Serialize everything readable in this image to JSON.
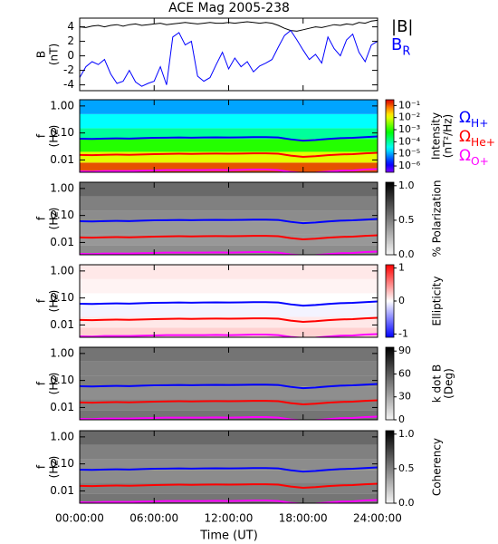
{
  "chart_data": [
    {
      "type": "line",
      "title": "ACE Mag 2005-238",
      "ylabel": [
        "B",
        "(nT)"
      ],
      "x": [
        0,
        0.5,
        1,
        1.5,
        2,
        2.5,
        3,
        3.5,
        4,
        4.5,
        5,
        5.5,
        6,
        6.5,
        7,
        7.5,
        8,
        8.5,
        9,
        9.5,
        10,
        10.5,
        11,
        11.5,
        12,
        12.5,
        13,
        13.5,
        14,
        14.5,
        15,
        15.5,
        16,
        16.5,
        17,
        17.5,
        18,
        18.5,
        19,
        19.5,
        20,
        20.5,
        21,
        21.5,
        22,
        22.5,
        23,
        23.5,
        24
      ],
      "ylim": [
        -4.8,
        5.2
      ],
      "yticks": [
        4,
        2,
        0,
        -2,
        -4
      ],
      "series": [
        {
          "name": "|B|",
          "color": "#000000",
          "values": [
            4.0,
            3.9,
            4.1,
            4.2,
            4.0,
            4.2,
            4.3,
            4.1,
            4.3,
            4.4,
            4.2,
            4.3,
            4.4,
            4.5,
            4.3,
            4.4,
            4.5,
            4.6,
            4.5,
            4.4,
            4.5,
            4.6,
            4.5,
            4.5,
            4.6,
            4.5,
            4.6,
            4.7,
            4.6,
            4.5,
            4.6,
            4.5,
            4.2,
            3.8,
            3.5,
            3.4,
            3.6,
            3.8,
            4.0,
            3.9,
            4.1,
            4.3,
            4.2,
            4.4,
            4.3,
            4.6,
            4.5,
            4.8,
            4.9
          ]
        },
        {
          "name": "B",
          "subscript": "R",
          "color": "#0000ff",
          "values": [
            -3.0,
            -1.5,
            -0.8,
            -1.2,
            -0.5,
            -2.5,
            -3.8,
            -3.5,
            -2.0,
            -3.6,
            -4.2,
            -3.8,
            -3.5,
            -1.5,
            -4.0,
            2.6,
            3.2,
            1.5,
            2.0,
            -2.8,
            -3.5,
            -3.0,
            -1.2,
            0.5,
            -1.8,
            -0.3,
            -1.5,
            -0.8,
            -2.2,
            -1.4,
            -1.0,
            -0.5,
            1.2,
            2.8,
            3.5,
            2.2,
            0.8,
            -0.5,
            0.2,
            -1.0,
            2.6,
            1.0,
            0.0,
            2.2,
            3.0,
            0.5,
            -0.8,
            1.5,
            2.0
          ]
        }
      ]
    },
    {
      "type": "spectrogram",
      "ylabel": [
        "f",
        "(Hz)"
      ],
      "log_y": true,
      "ylim": [
        0.0035,
        1.7
      ],
      "yticks": [
        {
          "value": 1,
          "label": "1.00"
        },
        {
          "value": 0.1,
          "label": "0.10"
        },
        {
          "value": 0.01,
          "label": "0.01"
        }
      ],
      "freq_bins": [
        0.0035,
        0.008,
        0.02,
        0.06,
        0.15,
        0.5,
        1.7
      ],
      "z": [
        0.1,
        0.01,
        0.001,
        0.0001,
        3e-05,
        1e-05
      ],
      "colormap": "rainbow",
      "zlog": true,
      "zlim": [
        3e-07,
        0.3
      ],
      "zlabel": [
        "Intensity",
        "(nT²/Hz)"
      ],
      "zticks": [
        {
          "value": 0.1,
          "label": "10⁻¹"
        },
        {
          "value": 0.01,
          "label": "10⁻²"
        },
        {
          "value": 0.001,
          "label": "10⁻³"
        },
        {
          "value": 0.0001,
          "label": "10⁻⁴"
        },
        {
          "value": 1e-05,
          "label": "10⁻⁵"
        },
        {
          "value": 1e-06,
          "label": "10⁻⁶"
        }
      ],
      "x": [
        0,
        1,
        2,
        3,
        4,
        5,
        6,
        7,
        8,
        9,
        10,
        11,
        12,
        13,
        14,
        15,
        16,
        17,
        18,
        19,
        20,
        21,
        22,
        23,
        24
      ],
      "series": [
        {
          "name": "Ω",
          "subscript": "H+",
          "color": "#0000ff",
          "values": [
            0.061,
            0.06,
            0.062,
            0.063,
            0.062,
            0.064,
            0.066,
            0.067,
            0.068,
            0.067,
            0.068,
            0.069,
            0.068,
            0.069,
            0.07,
            0.07,
            0.068,
            0.058,
            0.052,
            0.055,
            0.06,
            0.064,
            0.066,
            0.07,
            0.074
          ]
        },
        {
          "name": "Ω",
          "subscript": "He+",
          "color": "#ff0000",
          "values": [
            0.0153,
            0.015,
            0.0155,
            0.0158,
            0.0155,
            0.016,
            0.0165,
            0.0168,
            0.017,
            0.0168,
            0.017,
            0.0172,
            0.017,
            0.0172,
            0.0175,
            0.0175,
            0.017,
            0.0145,
            0.013,
            0.0138,
            0.015,
            0.016,
            0.0165,
            0.0175,
            0.0185
          ]
        },
        {
          "name": "Ω",
          "subscript": "O+",
          "color": "#ff00ff",
          "values": [
            0.0038,
            0.0037,
            0.0039,
            0.0039,
            0.0039,
            0.004,
            0.0041,
            0.0042,
            0.0042,
            0.0042,
            0.0042,
            0.0043,
            0.0042,
            0.0043,
            0.0044,
            0.0044,
            0.0042,
            0.0036,
            0.0033,
            0.0034,
            0.0037,
            0.004,
            0.0041,
            0.0044,
            0.0046
          ]
        }
      ]
    },
    {
      "type": "spectrogram",
      "ylabel": [
        "f",
        "(Hz)"
      ],
      "log_y": true,
      "ylim": [
        0.0035,
        1.7
      ],
      "yticks": [
        {
          "value": 1,
          "label": "1.00"
        },
        {
          "value": 0.1,
          "label": "0.10"
        },
        {
          "value": 0.01,
          "label": "0.01"
        }
      ],
      "freq_bins": [
        0.0035,
        0.008,
        0.02,
        0.06,
        0.15,
        0.5,
        1.7
      ],
      "z": [
        0.45,
        0.4,
        0.4,
        0.45,
        0.5,
        0.6
      ],
      "colormap": "gray",
      "zlim": [
        0,
        1.05
      ],
      "zlabel": [
        "% Polarization"
      ],
      "zticks": [
        {
          "value": 0,
          "label": "0.0"
        },
        {
          "value": 0.5,
          "label": "0.5"
        },
        {
          "value": 1,
          "label": "1.0"
        }
      ]
    },
    {
      "type": "spectrogram",
      "ylabel": [
        "f",
        "(Hz)"
      ],
      "log_y": true,
      "ylim": [
        0.0035,
        1.7
      ],
      "yticks": [
        {
          "value": 1,
          "label": "1.00"
        },
        {
          "value": 0.1,
          "label": "0.10"
        },
        {
          "value": 0.01,
          "label": "0.01"
        }
      ],
      "freq_bins": [
        0.0035,
        0.008,
        0.02,
        0.06,
        0.15,
        0.5,
        1.7
      ],
      "z": [
        0.2,
        0.1,
        -0.05,
        0.0,
        0.05,
        0.1
      ],
      "colormap": "bwr",
      "zlim": [
        -1.1,
        1.1
      ],
      "zlabel": [
        "Ellipticity"
      ],
      "zticks": [
        1,
        0,
        -1
      ]
    },
    {
      "type": "spectrogram",
      "ylabel": [
        "f",
        "(Hz)"
      ],
      "log_y": true,
      "ylim": [
        0.0035,
        1.7
      ],
      "yticks": [
        {
          "value": 1,
          "label": "1.00"
        },
        {
          "value": 0.1,
          "label": "0.10"
        },
        {
          "value": 0.01,
          "label": "0.01"
        }
      ],
      "freq_bins": [
        0.0035,
        0.008,
        0.02,
        0.06,
        0.15,
        0.5,
        1.7
      ],
      "z": [
        50,
        45,
        40,
        45,
        45,
        50
      ],
      "colormap": "gray",
      "zlim": [
        0,
        95
      ],
      "zlabel": [
        "k dot B",
        "(Deg)"
      ],
      "zticks": [
        0,
        30,
        60,
        90
      ]
    },
    {
      "type": "spectrogram",
      "ylabel": [
        "f",
        "(Hz)"
      ],
      "log_y": true,
      "ylim": [
        0.0035,
        1.7
      ],
      "yticks": [
        {
          "value": 1,
          "label": "1.00"
        },
        {
          "value": 0.1,
          "label": "0.10"
        },
        {
          "value": 0.01,
          "label": "0.01"
        }
      ],
      "freq_bins": [
        0.0035,
        0.008,
        0.02,
        0.06,
        0.15,
        0.5,
        1.7
      ],
      "z": [
        0.55,
        0.5,
        0.45,
        0.45,
        0.5,
        0.6
      ],
      "colormap": "gray",
      "zlim": [
        0,
        1.05
      ],
      "zlabel": [
        "Coherency"
      ],
      "zticks": [
        {
          "value": 0,
          "label": "0.0"
        },
        {
          "value": 0.5,
          "label": "0.5"
        },
        {
          "value": 1,
          "label": "1.0"
        }
      ],
      "xlim": [
        0,
        24
      ],
      "xlabel": "Time (UT)",
      "xticks": [
        {
          "value": 0,
          "label": "00:00:00"
        },
        {
          "value": 6,
          "label": "06:00:00"
        },
        {
          "value": 12,
          "label": "12:00:00"
        },
        {
          "value": 18,
          "label": "18:00:00"
        },
        {
          "value": 24,
          "label": "24:00:00"
        }
      ]
    }
  ]
}
